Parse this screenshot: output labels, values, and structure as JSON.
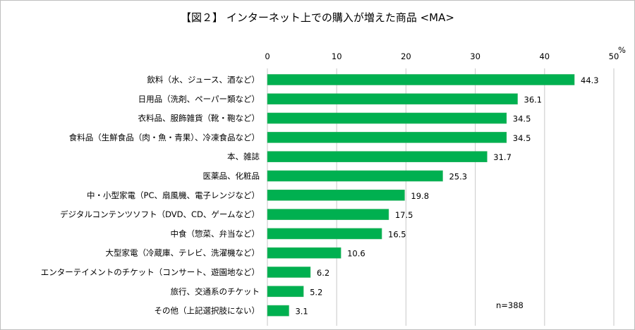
{
  "chart_data": {
    "type": "bar",
    "orientation": "horizontal",
    "title": "【図２】 インターネット上での購入が増えた商品 <MA>",
    "xlabel": "",
    "ylabel": "",
    "unit_label": "%",
    "xlim": [
      0,
      50
    ],
    "x_ticks": [
      "0",
      "10",
      "20",
      "30",
      "40",
      "50"
    ],
    "grid": true,
    "legend": "none",
    "bar_color": "#00b050",
    "annotation": "n=388",
    "categories": [
      "飲料（水、ジュース、酒など）",
      "日用品（洗剤、ペーパー類など）",
      "衣料品、服飾雑貨（靴・鞄など）",
      "食料品（生鮮食品（肉・魚・青果）、冷凍食品など）",
      "本、雑誌",
      "医薬品、化粧品",
      "中・小型家電（PC、扇風機、電子レンジなど）",
      "デジタルコンテンツソフト（DVD、CD、ゲームなど）",
      "中食（惣菜、弁当など）",
      "大型家電（冷蔵庫、テレビ、洗濯機など）",
      "エンターテイメントのチケット（コンサート、遊園地など）",
      "旅行、交通系のチケット",
      "その他（上記選択肢にない）"
    ],
    "values": [
      44.3,
      36.1,
      34.5,
      34.5,
      31.7,
      25.3,
      19.8,
      17.5,
      16.5,
      10.6,
      6.2,
      5.2,
      3.1
    ],
    "value_labels": [
      "44.3",
      "36.1",
      "34.5",
      "34.5",
      "31.7",
      "25.3",
      "19.8",
      "17.5",
      "16.5",
      "10.6",
      "6.2",
      "5.2",
      "3.1"
    ]
  }
}
